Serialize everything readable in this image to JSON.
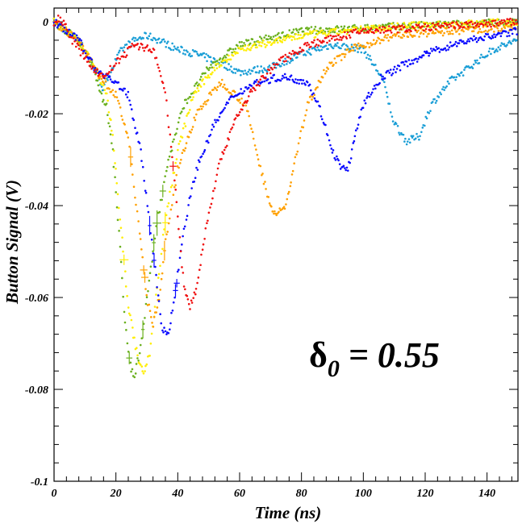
{
  "chart_data": {
    "type": "scatter",
    "title": "",
    "xlabel": "Time (ns)",
    "ylabel": "Button Signal (V)",
    "xlim": [
      0,
      150
    ],
    "ylim": [
      -0.1,
      0.003
    ],
    "x_ticks": [
      "0",
      "20",
      "40",
      "60",
      "80",
      "100",
      "120",
      "140"
    ],
    "y_ticks": [
      "0",
      "-0.02",
      "-0.04",
      "-0.06",
      "-0.08",
      "-0.1"
    ],
    "annotation": {
      "symbol": "δ",
      "subscript": "0",
      "text": " = 0.55"
    },
    "error_bars": true,
    "series": [
      {
        "color": "#1a9ed6",
        "points": [
          [
            0,
            0
          ],
          [
            8,
            -0.004
          ],
          [
            14,
            -0.011
          ],
          [
            16,
            -0.015
          ],
          [
            18,
            -0.011
          ],
          [
            22,
            -0.006
          ],
          [
            26,
            -0.004
          ],
          [
            30,
            -0.003
          ],
          [
            34,
            -0.004
          ],
          [
            40,
            -0.006
          ],
          [
            46,
            -0.007
          ],
          [
            54,
            -0.009
          ],
          [
            60,
            -0.011
          ],
          [
            70,
            -0.01
          ],
          [
            80,
            -0.007
          ],
          [
            90,
            -0.005
          ],
          [
            100,
            -0.006
          ],
          [
            106,
            -0.012
          ],
          [
            110,
            -0.022
          ],
          [
            114,
            -0.026
          ],
          [
            118,
            -0.025
          ],
          [
            122,
            -0.018
          ],
          [
            128,
            -0.013
          ],
          [
            134,
            -0.01
          ],
          [
            142,
            -0.006
          ],
          [
            150,
            -0.004
          ]
        ]
      },
      {
        "color": "#6ab01e",
        "points": [
          [
            0,
            0
          ],
          [
            8,
            -0.004
          ],
          [
            13,
            -0.01
          ],
          [
            15,
            -0.016
          ],
          [
            17,
            -0.018
          ],
          [
            19,
            -0.028
          ],
          [
            21,
            -0.046
          ],
          [
            23,
            -0.066
          ],
          [
            25,
            -0.076
          ],
          [
            26,
            -0.077
          ],
          [
            28,
            -0.071
          ],
          [
            30,
            -0.06
          ],
          [
            33,
            -0.045
          ],
          [
            37,
            -0.03
          ],
          [
            42,
            -0.018
          ],
          [
            50,
            -0.01
          ],
          [
            60,
            -0.005
          ],
          [
            80,
            -0.002
          ],
          [
            110,
            -0.001
          ],
          [
            150,
            0
          ]
        ]
      },
      {
        "color": "#ffee00",
        "points": [
          [
            0,
            0
          ],
          [
            8,
            -0.004
          ],
          [
            14,
            -0.011
          ],
          [
            17,
            -0.016
          ],
          [
            19,
            -0.025
          ],
          [
            21,
            -0.04
          ],
          [
            24,
            -0.062
          ],
          [
            27,
            -0.073
          ],
          [
            29,
            -0.076
          ],
          [
            31,
            -0.072
          ],
          [
            33,
            -0.06
          ],
          [
            36,
            -0.043
          ],
          [
            40,
            -0.028
          ],
          [
            45,
            -0.016
          ],
          [
            52,
            -0.01
          ],
          [
            60,
            -0.006
          ],
          [
            80,
            -0.003
          ],
          [
            110,
            -0.001
          ],
          [
            150,
            0
          ]
        ]
      },
      {
        "color": "#ffa000",
        "points": [
          [
            0,
            0
          ],
          [
            8,
            -0.004
          ],
          [
            15,
            -0.012
          ],
          [
            20,
            -0.016
          ],
          [
            24,
            -0.025
          ],
          [
            28,
            -0.048
          ],
          [
            30,
            -0.06
          ],
          [
            32,
            -0.066
          ],
          [
            34,
            -0.06
          ],
          [
            36,
            -0.048
          ],
          [
            40,
            -0.032
          ],
          [
            46,
            -0.02
          ],
          [
            54,
            -0.013
          ],
          [
            62,
            -0.018
          ],
          [
            66,
            -0.03
          ],
          [
            70,
            -0.04
          ],
          [
            72,
            -0.042
          ],
          [
            75,
            -0.04
          ],
          [
            78,
            -0.03
          ],
          [
            82,
            -0.018
          ],
          [
            88,
            -0.01
          ],
          [
            96,
            -0.006
          ],
          [
            110,
            -0.003
          ],
          [
            150,
            -0.001
          ]
        ]
      },
      {
        "color": "#0a0aff",
        "points": [
          [
            0,
            0
          ],
          [
            8,
            -0.004
          ],
          [
            14,
            -0.011
          ],
          [
            18,
            -0.012
          ],
          [
            24,
            -0.016
          ],
          [
            28,
            -0.028
          ],
          [
            32,
            -0.05
          ],
          [
            35,
            -0.067
          ],
          [
            37,
            -0.068
          ],
          [
            39,
            -0.06
          ],
          [
            42,
            -0.045
          ],
          [
            46,
            -0.032
          ],
          [
            52,
            -0.022
          ],
          [
            58,
            -0.016
          ],
          [
            66,
            -0.013
          ],
          [
            74,
            -0.012
          ],
          [
            82,
            -0.013
          ],
          [
            86,
            -0.019
          ],
          [
            90,
            -0.028
          ],
          [
            93,
            -0.032
          ],
          [
            95,
            -0.032
          ],
          [
            97,
            -0.026
          ],
          [
            100,
            -0.018
          ],
          [
            106,
            -0.012
          ],
          [
            114,
            -0.009
          ],
          [
            124,
            -0.006
          ],
          [
            134,
            -0.004
          ],
          [
            150,
            -0.002
          ]
        ]
      },
      {
        "color": "#f01010",
        "points": [
          [
            0,
            0
          ],
          [
            2,
            0.001
          ],
          [
            6,
            -0.004
          ],
          [
            10,
            -0.008
          ],
          [
            14,
            -0.011
          ],
          [
            16,
            -0.012
          ],
          [
            20,
            -0.009
          ],
          [
            26,
            -0.005
          ],
          [
            32,
            -0.006
          ],
          [
            36,
            -0.015
          ],
          [
            40,
            -0.042
          ],
          [
            42,
            -0.058
          ],
          [
            44,
            -0.062
          ],
          [
            46,
            -0.058
          ],
          [
            49,
            -0.045
          ],
          [
            53,
            -0.032
          ],
          [
            58,
            -0.022
          ],
          [
            64,
            -0.015
          ],
          [
            72,
            -0.009
          ],
          [
            82,
            -0.005
          ],
          [
            100,
            -0.002
          ],
          [
            150,
            0
          ]
        ]
      }
    ]
  }
}
